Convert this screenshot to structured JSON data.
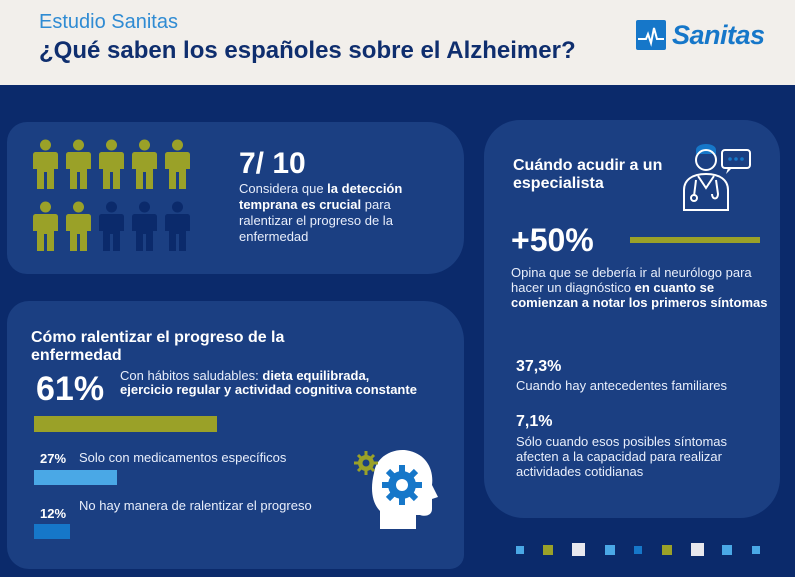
{
  "header": {
    "kicker": "Estudio Sanitas",
    "title": "¿Qué saben los españoles sobre el Alzheimer?",
    "logo_text": "Sanitas"
  },
  "colors": {
    "navy": "#0b2a6b",
    "card": "#1b3f82",
    "olive": "#9aa128",
    "light_blue": "#4aa8e6",
    "mid_blue": "#1677c9",
    "cream": "#f2efeb"
  },
  "detection": {
    "stat": "7/ 10",
    "text_pre": "Considera que ",
    "text_bold": "la detección temprana es crucial",
    "text_post": " para ralentizar el progreso de la enfermedad",
    "people_total": 10,
    "people_highlighted": 7
  },
  "slowing": {
    "title": "Cómo ralentizar el progreso de la enfermedad",
    "items": [
      {
        "pct": "61%",
        "value": 61,
        "text_pre": "Con hábitos saludables: ",
        "text_bold": "dieta equilibrada, ejercicio regular y actividad cognitiva constante"
      },
      {
        "pct": "27%",
        "value": 27,
        "text": "Solo con medicamentos específicos"
      },
      {
        "pct": "12%",
        "value": 12,
        "text": "No hay manera de ralentizar el progreso"
      }
    ],
    "icon": "head-gears-icon"
  },
  "specialist": {
    "title": "Cuándo acudir a un especialista",
    "icon": "doctor-icon",
    "main_stat": "+50%",
    "main_text_pre": "Opina que se debería ir al neurólogo para hacer un diagnóstico ",
    "main_text_bold": "en cuanto se comienzan a notar los primeros síntomas",
    "stat2": "37,3%",
    "stat2_text": "Cuando hay antecedentes familiares",
    "stat3": "7,1%",
    "stat3_text": "Sólo cuando esos posibles síntomas afecten a la capacidad para realizar actividades cotidianas"
  }
}
